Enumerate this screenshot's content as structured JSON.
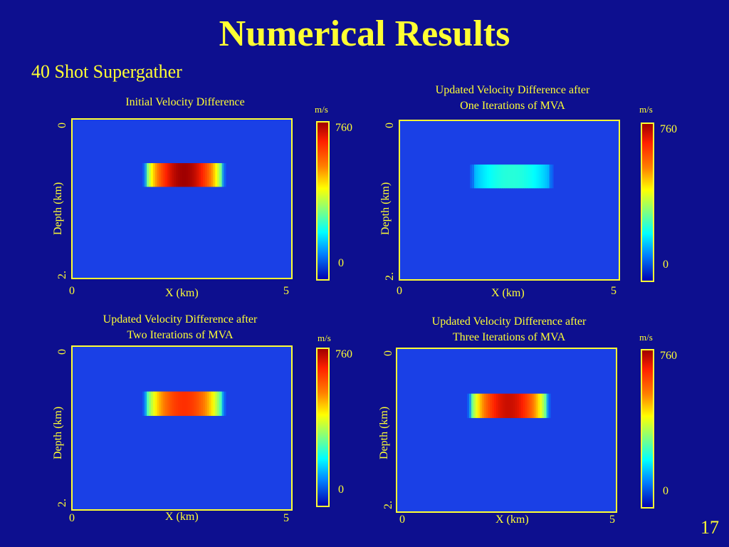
{
  "slide": {
    "title": "Numerical Results",
    "subtitle": "40 Shot Supergather",
    "page_number": "17"
  },
  "colorbar": {
    "unit": "m/s",
    "max_label": "760",
    "min_label": "0"
  },
  "chart_data": [
    {
      "type": "heatmap",
      "title": "Initial Velocity Difference",
      "xlabel": "X (km)",
      "ylabel": "Depth (km)",
      "xtick_labels": [
        "0",
        "5"
      ],
      "ytick_labels": [
        "0",
        "2."
      ],
      "xlim": [
        0,
        5
      ],
      "ylim": [
        0,
        2
      ],
      "colorbar": {
        "unit": "m/s",
        "min": 0,
        "max": 760
      },
      "anomaly": {
        "x": [
          1.6,
          3.5
        ],
        "depth": [
          0.55,
          0.85
        ],
        "peak_value": 760
      }
    },
    {
      "type": "heatmap",
      "title": "Updated Velocity Difference after\nOne Iterations of MVA",
      "xlabel": "X (km)",
      "ylabel": "Depth (km)",
      "xtick_labels": [
        "0",
        "5"
      ],
      "ytick_labels": [
        "0",
        "2."
      ],
      "xlim": [
        0,
        5
      ],
      "ylim": [
        0,
        2
      ],
      "colorbar": {
        "unit": "m/s",
        "min": 0,
        "max": 760
      },
      "anomaly": {
        "x": [
          1.6,
          3.5
        ],
        "depth": [
          0.55,
          0.85
        ],
        "peak_value": 260
      }
    },
    {
      "type": "heatmap",
      "title": "Updated Velocity Difference after\nTwo Iterations of MVA",
      "xlabel": "X (km)",
      "ylabel": "Depth (km)",
      "xtick_labels": [
        "0",
        "5"
      ],
      "ytick_labels": [
        "0",
        "2."
      ],
      "xlim": [
        0,
        5
      ],
      "ylim": [
        0,
        2
      ],
      "colorbar": {
        "unit": "m/s",
        "min": 0,
        "max": 760
      },
      "anomaly": {
        "x": [
          1.6,
          3.5
        ],
        "depth": [
          0.55,
          0.85
        ],
        "peak_value": 650
      }
    },
    {
      "type": "heatmap",
      "title": "Updated Velocity Difference after\nThree Iterations of MVA",
      "xlabel": "X (km)",
      "ylabel": "Depth (km)",
      "xtick_labels": [
        "0",
        "5"
      ],
      "ytick_labels": [
        "0",
        "2."
      ],
      "xlim": [
        0,
        5
      ],
      "ylim": [
        0,
        2
      ],
      "colorbar": {
        "unit": "m/s",
        "min": 0,
        "max": 760
      },
      "anomaly": {
        "x": [
          1.6,
          3.5
        ],
        "depth": [
          0.55,
          0.85
        ],
        "peak_value": 720
      }
    }
  ]
}
